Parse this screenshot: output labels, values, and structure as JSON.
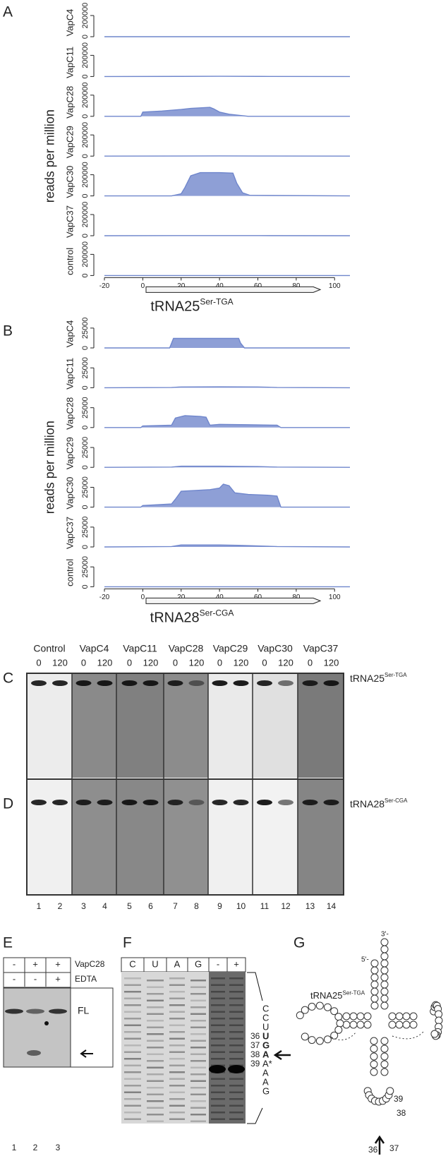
{
  "panel_a": {
    "label": "A",
    "y_label": "reads per million",
    "x_label": "tRNA25",
    "x_label_sup": "Ser-TGA",
    "xlim": [
      -20,
      108
    ],
    "xticks": [
      -20,
      0,
      20,
      40,
      60,
      80,
      100
    ],
    "ylim": [
      0,
      260000
    ],
    "color": "#8e9fd6",
    "tracks": [
      {
        "name": "VapC4",
        "yticks": [
          0,
          200000
        ],
        "x": [
          -20,
          108
        ],
        "values": [
          0,
          0
        ]
      },
      {
        "name": "VapC11",
        "yticks": [
          0,
          200000
        ],
        "x": [
          -20,
          20,
          40,
          60,
          108
        ],
        "values": [
          0,
          1000,
          2000,
          1000,
          0
        ]
      },
      {
        "name": "VapC28",
        "yticks": [
          0,
          200000
        ],
        "x": [
          -20,
          -1,
          0,
          10,
          20,
          25,
          30,
          35,
          37,
          40,
          45,
          50,
          55,
          108
        ],
        "values": [
          0,
          0,
          40000,
          50000,
          65000,
          75000,
          80000,
          85000,
          70000,
          40000,
          20000,
          10000,
          0,
          0
        ]
      },
      {
        "name": "VapC29",
        "yticks": [
          0,
          200000
        ],
        "x": [
          -20,
          20,
          40,
          60,
          108
        ],
        "values": [
          0,
          1000,
          2000,
          1000,
          0
        ]
      },
      {
        "name": "VapC30",
        "yticks": [
          0,
          200000
        ],
        "x": [
          -20,
          15,
          20,
          22,
          25,
          30,
          40,
          47,
          49,
          52,
          56,
          108
        ],
        "values": [
          0,
          0,
          20000,
          80000,
          190000,
          220000,
          220000,
          215000,
          120000,
          30000,
          5000,
          0
        ]
      },
      {
        "name": "VapC37",
        "yticks": [
          0,
          200000
        ],
        "x": [
          -20,
          20,
          40,
          60,
          108
        ],
        "values": [
          0,
          1000,
          1500,
          1000,
          0
        ]
      },
      {
        "name": "control",
        "yticks": [
          0,
          200000
        ],
        "x": [
          -20,
          108
        ],
        "values": [
          0,
          0
        ]
      }
    ]
  },
  "panel_b": {
    "label": "B",
    "y_label": "reads per million",
    "x_label": "tRNA28",
    "x_label_sup": "Ser-CGA",
    "xlim": [
      -20,
      108
    ],
    "xticks": [
      -20,
      0,
      20,
      40,
      60,
      80,
      100
    ],
    "ylim": [
      0,
      32000
    ],
    "color": "#8e9fd6",
    "tracks": [
      {
        "name": "VapC4",
        "yticks": [
          0,
          25000
        ],
        "x": [
          -20,
          14,
          15,
          16,
          50,
          51,
          53,
          108
        ],
        "values": [
          0,
          0,
          6000,
          12000,
          12000,
          6000,
          0,
          0
        ]
      },
      {
        "name": "VapC11",
        "yticks": [
          0,
          25000
        ],
        "x": [
          -20,
          15,
          20,
          40,
          60,
          70,
          108
        ],
        "values": [
          0,
          300,
          1000,
          1200,
          1000,
          300,
          0
        ]
      },
      {
        "name": "VapC28",
        "yticks": [
          0,
          25000
        ],
        "x": [
          -20,
          -1,
          0,
          15,
          17,
          22,
          30,
          33,
          35,
          40,
          55,
          70,
          72,
          108
        ],
        "values": [
          0,
          0,
          2000,
          3000,
          12000,
          15000,
          14000,
          13000,
          3000,
          4000,
          3500,
          3000,
          0,
          0
        ]
      },
      {
        "name": "VapC29",
        "yticks": [
          0,
          25000
        ],
        "x": [
          -20,
          15,
          20,
          40,
          60,
          70,
          108
        ],
        "values": [
          0,
          300,
          1500,
          1500,
          1000,
          300,
          0
        ]
      },
      {
        "name": "VapC30",
        "yticks": [
          0,
          25000
        ],
        "x": [
          -20,
          -1,
          0,
          15,
          17,
          20,
          35,
          40,
          42,
          45,
          48,
          55,
          65,
          70,
          72,
          108
        ],
        "values": [
          0,
          0,
          2000,
          4000,
          10000,
          20000,
          22000,
          24000,
          29000,
          27000,
          18000,
          16000,
          15000,
          14000,
          0,
          0
        ]
      },
      {
        "name": "VapC37",
        "yticks": [
          0,
          25000
        ],
        "x": [
          -20,
          15,
          20,
          40,
          50,
          70,
          108
        ],
        "values": [
          0,
          500,
          2500,
          2500,
          2000,
          500,
          0
        ]
      },
      {
        "name": "control",
        "yticks": [
          0,
          25000
        ],
        "x": [
          -20,
          108
        ],
        "values": [
          0,
          0
        ]
      }
    ]
  },
  "gels": {
    "group_labels": [
      "Control",
      "VapC4",
      "VapC11",
      "VapC28",
      "VapC29",
      "VapC30",
      "VapC37"
    ],
    "time_labels": [
      "0",
      "120"
    ],
    "lane_numbers": [
      "1",
      "2",
      "3",
      "4",
      "5",
      "6",
      "7",
      "8",
      "9",
      "10",
      "11",
      "12",
      "13",
      "14"
    ],
    "blots": [
      {
        "label": "C",
        "probe": "tRNA25",
        "probe_sup": "Ser-TGA"
      },
      {
        "label": "D",
        "probe": "tRNA28",
        "probe_sup": "Ser-CGA"
      }
    ]
  },
  "panel_e": {
    "label": "E",
    "rows": [
      {
        "name": "VapC28",
        "cells": [
          "-",
          "+",
          "+"
        ]
      },
      {
        "name": "EDTA",
        "cells": [
          "-",
          "-",
          "+"
        ]
      }
    ],
    "band_label": "FL",
    "lanes": [
      "1",
      "2",
      "3"
    ]
  },
  "panel_f": {
    "label": "F",
    "lanes": [
      "C",
      "U",
      "A",
      "G",
      "-",
      "+"
    ],
    "sequence": [
      {
        "base": "C"
      },
      {
        "base": "C"
      },
      {
        "base": "U"
      },
      {
        "base": "U",
        "bold": true,
        "pos": "36"
      },
      {
        "base": "G",
        "bold": true,
        "pos": "37"
      },
      {
        "base": "A",
        "bold": true,
        "pos": "38"
      },
      {
        "base": "A*",
        "pos": "39"
      },
      {
        "base": "A"
      },
      {
        "base": "A"
      },
      {
        "base": "G"
      }
    ]
  },
  "panel_g": {
    "label": "G",
    "title": "tRNA25",
    "title_sup": "Ser-TGA",
    "five_prime": "5'-",
    "three_prime": "3'-",
    "numbers": [
      "39",
      "38",
      "37",
      "36"
    ]
  }
}
